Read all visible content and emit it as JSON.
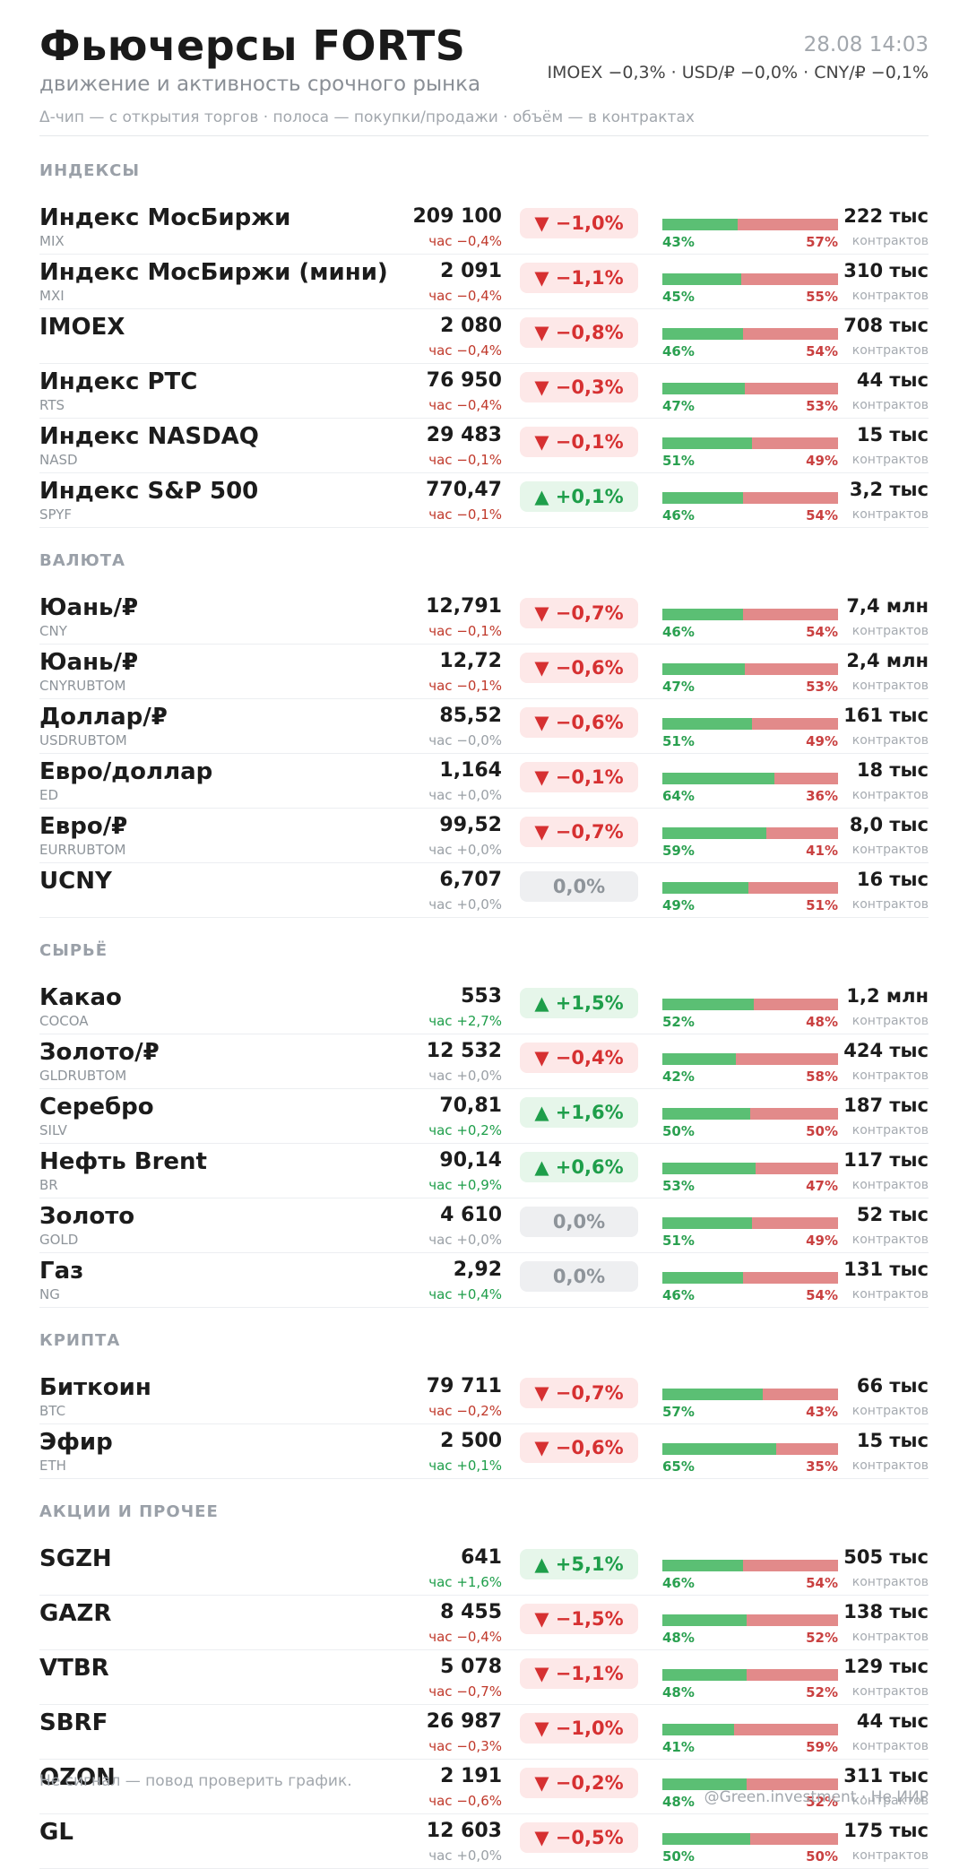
{
  "header": {
    "title": "Фьючерсы FORTS",
    "subtitle": "движение и активность срочного рынка",
    "legend": "Δ-чип — с открытия торгов  ·  полоса — покупки/продажи  ·  объём — в контрактах",
    "timestamp": "28.08 14:03",
    "ticker": "IMOEX −0,3%  ·  USD/₽ −0,0%  ·  CNY/₽ −0,1%"
  },
  "volume_unit": "контрактов",
  "colors": {
    "negative": "#d63031",
    "positive": "#1e9e4a",
    "flat": "#8e949a",
    "buy_bar": "#5bbf74",
    "sell_bar": "#e28a8a"
  },
  "icons": {
    "down": "triangle-down-icon",
    "up": "triangle-up-icon"
  },
  "sections": [
    {
      "title": "ИНДЕКСЫ",
      "rows": [
        {
          "name": "Индекс МосБиржи",
          "code": "MIX",
          "price": "209 100",
          "hour": "час −0,4%",
          "hour_dir": "neg",
          "chip": "▼ −1,0%",
          "chip_dir": "neg",
          "buy": 43,
          "sell": 57,
          "buy_label": "43%",
          "sell_label": "57%",
          "volume": "222 тыс"
        },
        {
          "name": "Индекс МосБиржи (мини)",
          "code": "MXI",
          "price": "2 091",
          "hour": "час −0,4%",
          "hour_dir": "neg",
          "chip": "▼ −1,1%",
          "chip_dir": "neg",
          "buy": 45,
          "sell": 55,
          "buy_label": "45%",
          "sell_label": "55%",
          "volume": "310 тыс"
        },
        {
          "name": "IMOEX",
          "code": "",
          "price": "2 080",
          "hour": "час −0,4%",
          "hour_dir": "neg",
          "chip": "▼ −0,8%",
          "chip_dir": "neg",
          "buy": 46,
          "sell": 54,
          "buy_label": "46%",
          "sell_label": "54%",
          "volume": "708 тыс"
        },
        {
          "name": "Индекс РТС",
          "code": "RTS",
          "price": "76 950",
          "hour": "час −0,4%",
          "hour_dir": "neg",
          "chip": "▼ −0,3%",
          "chip_dir": "neg",
          "buy": 47,
          "sell": 53,
          "buy_label": "47%",
          "sell_label": "53%",
          "volume": "44 тыс"
        },
        {
          "name": "Индекс NASDAQ",
          "code": "NASD",
          "price": "29 483",
          "hour": "час −0,1%",
          "hour_dir": "neg",
          "chip": "▼ −0,1%",
          "chip_dir": "neg",
          "buy": 51,
          "sell": 49,
          "buy_label": "51%",
          "sell_label": "49%",
          "volume": "15 тыс"
        },
        {
          "name": "Индекс S&P 500",
          "code": "SPYF",
          "price": "770,47",
          "hour": "час −0,1%",
          "hour_dir": "neg",
          "chip": "▲ +0,1%",
          "chip_dir": "pos",
          "buy": 46,
          "sell": 54,
          "buy_label": "46%",
          "sell_label": "54%",
          "volume": "3,2 тыс"
        }
      ]
    },
    {
      "title": "ВАЛЮТА",
      "rows": [
        {
          "name": "Юань/₽",
          "code": "CNY",
          "price": "12,791",
          "hour": "час −0,1%",
          "hour_dir": "neg",
          "chip": "▼ −0,7%",
          "chip_dir": "neg",
          "buy": 46,
          "sell": 54,
          "buy_label": "46%",
          "sell_label": "54%",
          "volume": "7,4 млн"
        },
        {
          "name": "Юань/₽",
          "code": "CNYRUBTOM",
          "price": "12,72",
          "hour": "час −0,1%",
          "hour_dir": "neg",
          "chip": "▼ −0,6%",
          "chip_dir": "neg",
          "buy": 47,
          "sell": 53,
          "buy_label": "47%",
          "sell_label": "53%",
          "volume": "2,4 млн"
        },
        {
          "name": "Доллар/₽",
          "code": "USDRUBTOM",
          "price": "85,52",
          "hour": "час −0,0%",
          "hour_dir": "flat",
          "chip": "▼ −0,6%",
          "chip_dir": "neg",
          "buy": 51,
          "sell": 49,
          "buy_label": "51%",
          "sell_label": "49%",
          "volume": "161 тыс"
        },
        {
          "name": "Евро/доллар",
          "code": "ED",
          "price": "1,164",
          "hour": "час +0,0%",
          "hour_dir": "flat",
          "chip": "▼ −0,1%",
          "chip_dir": "neg",
          "buy": 64,
          "sell": 36,
          "buy_label": "64%",
          "sell_label": "36%",
          "volume": "18 тыс"
        },
        {
          "name": "Евро/₽",
          "code": "EURRUBTOM",
          "price": "99,52",
          "hour": "час +0,0%",
          "hour_dir": "flat",
          "chip": "▼ −0,7%",
          "chip_dir": "neg",
          "buy": 59,
          "sell": 41,
          "buy_label": "59%",
          "sell_label": "41%",
          "volume": "8,0 тыс"
        },
        {
          "name": "UCNY",
          "code": "",
          "price": "6,707",
          "hour": "час +0,0%",
          "hour_dir": "flat",
          "chip": "0,0%",
          "chip_dir": "flat",
          "buy": 49,
          "sell": 51,
          "buy_label": "49%",
          "sell_label": "51%",
          "volume": "16 тыс"
        }
      ]
    },
    {
      "title": "СЫРЬЁ",
      "rows": [
        {
          "name": "Какао",
          "code": "COCOA",
          "price": "553",
          "hour": "час +2,7%",
          "hour_dir": "pos",
          "chip": "▲ +1,5%",
          "chip_dir": "pos",
          "buy": 52,
          "sell": 48,
          "buy_label": "52%",
          "sell_label": "48%",
          "volume": "1,2 млн"
        },
        {
          "name": "Золото/₽",
          "code": "GLDRUBTOM",
          "price": "12 532",
          "hour": "час +0,0%",
          "hour_dir": "flat",
          "chip": "▼ −0,4%",
          "chip_dir": "neg",
          "buy": 42,
          "sell": 58,
          "buy_label": "42%",
          "sell_label": "58%",
          "volume": "424 тыс"
        },
        {
          "name": "Серебро",
          "code": "SILV",
          "price": "70,81",
          "hour": "час +0,2%",
          "hour_dir": "pos",
          "chip": "▲ +1,6%",
          "chip_dir": "pos",
          "buy": 50,
          "sell": 50,
          "buy_label": "50%",
          "sell_label": "50%",
          "volume": "187 тыс"
        },
        {
          "name": "Нефть Brent",
          "code": "BR",
          "price": "90,14",
          "hour": "час +0,9%",
          "hour_dir": "pos",
          "chip": "▲ +0,6%",
          "chip_dir": "pos",
          "buy": 53,
          "sell": 47,
          "buy_label": "53%",
          "sell_label": "47%",
          "volume": "117 тыс"
        },
        {
          "name": "Золото",
          "code": "GOLD",
          "price": "4 610",
          "hour": "час +0,0%",
          "hour_dir": "flat",
          "chip": "0,0%",
          "chip_dir": "flat",
          "buy": 51,
          "sell": 49,
          "buy_label": "51%",
          "sell_label": "49%",
          "volume": "52 тыс"
        },
        {
          "name": "Газ",
          "code": "NG",
          "price": "2,92",
          "hour": "час +0,4%",
          "hour_dir": "pos",
          "chip": "0,0%",
          "chip_dir": "flat",
          "buy": 46,
          "sell": 54,
          "buy_label": "46%",
          "sell_label": "54%",
          "volume": "131 тыс"
        }
      ]
    },
    {
      "title": "КРИПТА",
      "rows": [
        {
          "name": "Биткоин",
          "code": "BTC",
          "price": "79 711",
          "hour": "час −0,2%",
          "hour_dir": "neg",
          "chip": "▼ −0,7%",
          "chip_dir": "neg",
          "buy": 57,
          "sell": 43,
          "buy_label": "57%",
          "sell_label": "43%",
          "volume": "66 тыс"
        },
        {
          "name": "Эфир",
          "code": "ETH",
          "price": "2 500",
          "hour": "час +0,1%",
          "hour_dir": "pos",
          "chip": "▼ −0,6%",
          "chip_dir": "neg",
          "buy": 65,
          "sell": 35,
          "buy_label": "65%",
          "sell_label": "35%",
          "volume": "15 тыс"
        }
      ]
    },
    {
      "title": "АКЦИИ И ПРОЧЕЕ",
      "rows": [
        {
          "name": "SGZH",
          "code": "",
          "price": "641",
          "hour": "час +1,6%",
          "hour_dir": "pos",
          "chip": "▲ +5,1%",
          "chip_dir": "pos",
          "buy": 46,
          "sell": 54,
          "buy_label": "46%",
          "sell_label": "54%",
          "volume": "505 тыс"
        },
        {
          "name": "GAZR",
          "code": "",
          "price": "8 455",
          "hour": "час −0,4%",
          "hour_dir": "neg",
          "chip": "▼ −1,5%",
          "chip_dir": "neg",
          "buy": 48,
          "sell": 52,
          "buy_label": "48%",
          "sell_label": "52%",
          "volume": "138 тыс"
        },
        {
          "name": "VTBR",
          "code": "",
          "price": "5 078",
          "hour": "час −0,7%",
          "hour_dir": "neg",
          "chip": "▼ −1,1%",
          "chip_dir": "neg",
          "buy": 48,
          "sell": 52,
          "buy_label": "48%",
          "sell_label": "52%",
          "volume": "129 тыс"
        },
        {
          "name": "SBRF",
          "code": "",
          "price": "26 987",
          "hour": "час −0,3%",
          "hour_dir": "neg",
          "chip": "▼ −1,0%",
          "chip_dir": "neg",
          "buy": 41,
          "sell": 59,
          "buy_label": "41%",
          "sell_label": "59%",
          "volume": "44 тыс"
        },
        {
          "name": "OZON",
          "code": "",
          "price": "2 191",
          "hour": "час −0,6%",
          "hour_dir": "neg",
          "chip": "▼ −0,2%",
          "chip_dir": "neg",
          "buy": 48,
          "sell": 52,
          "buy_label": "48%",
          "sell_label": "52%",
          "volume": "311 тыс"
        },
        {
          "name": "GL",
          "code": "",
          "price": "12 603",
          "hour": "час +0,0%",
          "hour_dir": "flat",
          "chip": "▼ −0,5%",
          "chip_dir": "neg",
          "buy": 50,
          "sell": 50,
          "buy_label": "50%",
          "sell_label": "50%",
          "volume": "175 тыс"
        }
      ]
    }
  ],
  "footer": {
    "note": "Не сигнал — повод проверить график.",
    "credit": "@Green.investment · Не ИИР"
  }
}
